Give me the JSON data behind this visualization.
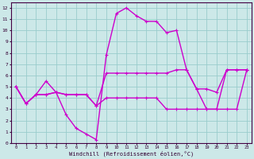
{
  "xlabel": "Windchill (Refroidissement éolien,°C)",
  "background_color": "#cce8e8",
  "grid_color": "#99cccc",
  "line_color": "#cc00cc",
  "xlim": [
    -0.5,
    23.5
  ],
  "ylim": [
    0,
    12.5
  ],
  "xticks": [
    0,
    1,
    2,
    3,
    4,
    5,
    6,
    7,
    8,
    9,
    10,
    11,
    12,
    13,
    14,
    15,
    16,
    17,
    18,
    19,
    20,
    21,
    22,
    23
  ],
  "yticks": [
    0,
    1,
    2,
    3,
    4,
    5,
    6,
    7,
    8,
    9,
    10,
    11,
    12
  ],
  "line1_x": [
    0,
    1,
    2,
    3,
    4,
    5,
    6,
    7,
    8,
    9,
    10,
    11,
    12,
    13,
    14,
    15,
    16,
    17,
    18,
    19,
    20,
    21,
    22,
    23
  ],
  "line1_y": [
    5.0,
    3.5,
    4.3,
    4.3,
    4.5,
    2.5,
    1.3,
    0.8,
    0.3,
    7.8,
    11.5,
    12.0,
    11.3,
    10.8,
    10.8,
    9.8,
    10.0,
    6.5,
    4.8,
    3.0,
    3.0,
    6.5,
    6.5,
    6.5
  ],
  "line2_x": [
    0,
    1,
    2,
    3,
    4,
    5,
    6,
    7,
    8,
    9,
    10,
    11,
    12,
    13,
    14,
    15,
    16,
    17,
    18,
    19,
    20,
    21,
    22,
    23
  ],
  "line2_y": [
    5.0,
    3.5,
    4.3,
    5.5,
    4.5,
    4.3,
    4.3,
    4.3,
    3.3,
    6.2,
    6.2,
    6.2,
    6.2,
    6.2,
    6.2,
    6.2,
    6.5,
    6.5,
    4.8,
    4.8,
    4.5,
    6.5,
    6.5,
    6.5
  ],
  "line3_x": [
    0,
    1,
    2,
    3,
    4,
    5,
    6,
    7,
    8,
    9,
    10,
    11,
    12,
    13,
    14,
    15,
    16,
    17,
    18,
    19,
    20,
    21,
    22,
    23
  ],
  "line3_y": [
    5.0,
    3.5,
    4.3,
    4.3,
    4.5,
    4.3,
    4.3,
    4.3,
    3.3,
    4.0,
    4.0,
    4.0,
    4.0,
    4.0,
    4.0,
    3.0,
    3.0,
    3.0,
    3.0,
    3.0,
    3.0,
    3.0,
    3.0,
    6.5
  ]
}
